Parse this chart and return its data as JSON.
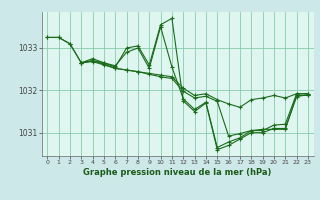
{
  "background_color": "#cde8e8",
  "plot_bg_color": "#dff5f0",
  "grid_color": "#88ccaa",
  "line_color": "#1a6b1a",
  "xlabel": "Graphe pression niveau de la mer (hPa)",
  "xlim": [
    -0.5,
    23.5
  ],
  "ylim": [
    1030.45,
    1033.85
  ],
  "yticks": [
    1031,
    1032,
    1033
  ],
  "xticks": [
    0,
    1,
    2,
    3,
    4,
    5,
    6,
    7,
    8,
    9,
    10,
    11,
    12,
    13,
    14,
    15,
    16,
    17,
    18,
    19,
    20,
    21,
    22,
    23
  ],
  "series": [
    {
      "x": [
        0,
        1,
        2,
        3,
        4,
        5,
        6,
        7,
        8,
        9,
        10,
        11,
        12,
        13,
        14,
        15,
        16,
        17,
        18,
        19,
        20,
        21,
        22,
        23
      ],
      "y": [
        1033.25,
        1033.25,
        1033.1,
        1032.65,
        1032.75,
        1032.65,
        1032.55,
        1033.0,
        1033.05,
        1032.6,
        1033.55,
        1033.7,
        1031.75,
        1031.5,
        1031.7,
        1030.6,
        1030.7,
        1030.85,
        1031.0,
        1031.0,
        1031.1,
        1031.1,
        1031.85,
        1031.9
      ]
    },
    {
      "x": [
        0,
        1,
        2,
        3,
        4,
        5,
        6,
        7,
        8,
        9,
        10,
        11,
        12,
        13,
        14,
        15,
        16,
        17,
        18,
        19,
        20,
        21,
        22,
        23
      ],
      "y": [
        1033.25,
        1033.25,
        1033.1,
        1032.65,
        1032.7,
        1032.65,
        1032.58,
        1032.9,
        1033.0,
        1032.52,
        1033.5,
        1032.55,
        1031.8,
        1031.55,
        1031.72,
        1030.65,
        1030.78,
        1030.88,
        1031.05,
        1031.05,
        1031.18,
        1031.2,
        1031.92,
        1031.92
      ]
    },
    {
      "x": [
        3,
        4,
        5,
        6,
        7,
        8,
        9,
        10,
        11,
        12,
        13,
        14,
        15,
        16,
        17,
        18,
        19,
        20,
        21,
        22,
        23
      ],
      "y": [
        1032.65,
        1032.68,
        1032.6,
        1032.52,
        1032.48,
        1032.44,
        1032.4,
        1032.36,
        1032.32,
        1032.05,
        1031.88,
        1031.92,
        1031.78,
        1031.68,
        1031.6,
        1031.78,
        1031.82,
        1031.88,
        1031.82,
        1031.92,
        1031.92
      ]
    },
    {
      "x": [
        3,
        4,
        5,
        6,
        7,
        8,
        9,
        10,
        11,
        12,
        13,
        14,
        15,
        16,
        17,
        18,
        19,
        20,
        21,
        22,
        23
      ],
      "y": [
        1032.65,
        1032.7,
        1032.62,
        1032.52,
        1032.48,
        1032.44,
        1032.38,
        1032.32,
        1032.28,
        1031.98,
        1031.82,
        1031.86,
        1031.74,
        1030.92,
        1030.98,
        1031.05,
        1031.08,
        1031.08,
        1031.08,
        1031.88,
        1031.88
      ]
    }
  ]
}
